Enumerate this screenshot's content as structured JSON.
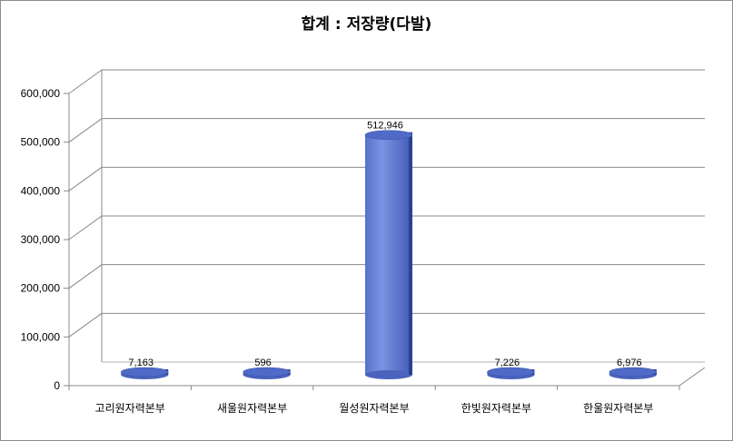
{
  "chart_data": {
    "type": "bar",
    "title": "합계 : 저장량(다발)",
    "xlabel": "",
    "ylabel": "",
    "categories": [
      "고리원자력본부",
      "새울원자력본부",
      "월성원자력본부",
      "한빛원자력본부",
      "한울원자력본부"
    ],
    "values": [
      7163,
      596,
      512946,
      7226,
      6976
    ],
    "data_labels": [
      "7,163",
      "596",
      "512,946",
      "7,226",
      "6,976"
    ],
    "y_ticks": [
      "0",
      "100,000",
      "200,000",
      "300,000",
      "400,000",
      "500,000",
      "600,000"
    ],
    "ylim": [
      0,
      600000
    ],
    "grid": true,
    "legend": "none",
    "style": "3d-cylinder",
    "colors": {
      "bar_front": "#6a84d8",
      "bar_side": "#2e4a9e",
      "bar_top": "#4f6bc7"
    }
  }
}
